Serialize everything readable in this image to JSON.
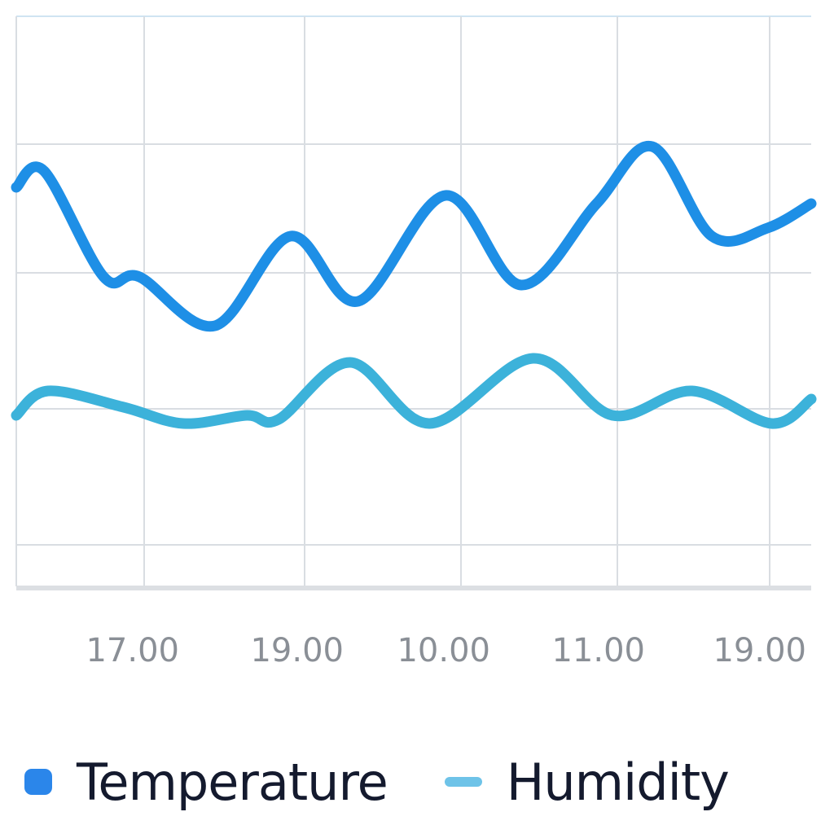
{
  "chart_data": {
    "type": "line",
    "x_tick_labels": [
      "17.00",
      "19.00",
      "10.00",
      "11.00",
      "19.00"
    ],
    "ylim": [
      0,
      7
    ],
    "grid": true,
    "legend_position": "bottom-left",
    "series": [
      {
        "name": "Temperature",
        "color": "#1e8fe6",
        "x": [
          0,
          0.35,
          1.1,
          1.55,
          2.5,
          3.45,
          4.3,
          5.4,
          6.35,
          7.3,
          8.0,
          8.75,
          9.45,
          10.0
        ],
        "y": [
          4.9,
          5.1,
          3.8,
          3.8,
          3.2,
          4.3,
          3.5,
          4.8,
          3.7,
          4.7,
          5.4,
          4.3,
          4.4,
          4.7
        ]
      },
      {
        "name": "Humidity",
        "color": "#3cb2da",
        "x": [
          0,
          0.4,
          1.35,
          2.1,
          2.9,
          3.3,
          4.2,
          5.2,
          6.5,
          7.5,
          8.5,
          9.5,
          10.0
        ],
        "y": [
          2.1,
          2.4,
          2.2,
          2.0,
          2.1,
          2.05,
          2.75,
          2.0,
          2.8,
          2.1,
          2.4,
          2.0,
          2.3
        ]
      }
    ],
    "legend": [
      {
        "label": "Temperature",
        "color": "#2b86ea"
      },
      {
        "label": "Humidity",
        "color": "#6ec3e8"
      }
    ]
  }
}
